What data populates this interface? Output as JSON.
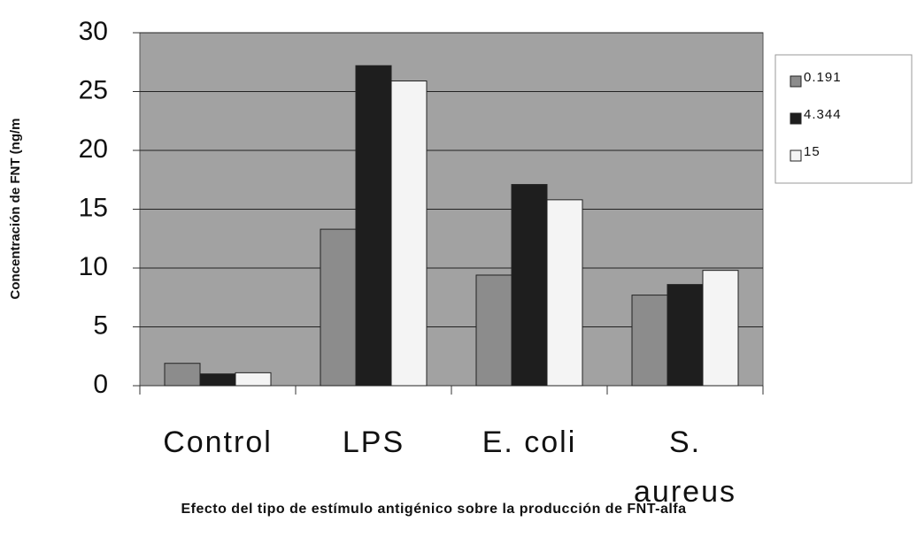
{
  "chart_data": {
    "type": "bar",
    "title": "Efecto del tipo de estímulo antigénico sobre la producción de FNT-alfa",
    "y_label": "Concentración de FNT (ng/m",
    "categories": [
      "Control",
      "LPS",
      "E. coli",
      "S. aureus"
    ],
    "series": [
      {
        "name": "0.191",
        "color": "#8c8c8c",
        "values": [
          1.9,
          13.3,
          9.4,
          7.7
        ]
      },
      {
        "name": "4.344",
        "color": "#1e1e1e",
        "values": [
          1.0,
          27.2,
          17.1,
          8.6
        ]
      },
      {
        "name": "15",
        "color": "#f4f4f4",
        "values": [
          1.1,
          25.9,
          15.8,
          9.8
        ]
      }
    ],
    "ylim": [
      0,
      30
    ],
    "yticks": [
      0,
      5,
      10,
      15,
      20,
      25,
      30
    ],
    "grid": true,
    "legend": "right",
    "plot_background": "#a2a2a2"
  }
}
